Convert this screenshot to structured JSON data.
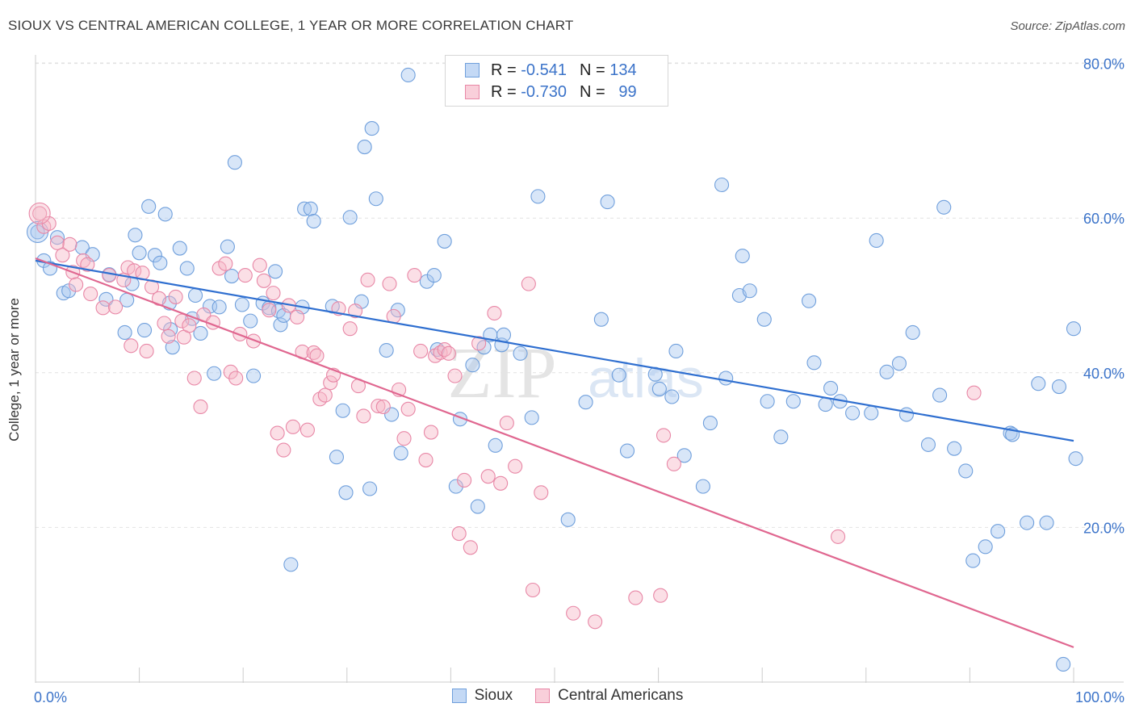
{
  "title": "SIOUX VS CENTRAL AMERICAN COLLEGE, 1 YEAR OR MORE CORRELATION CHART",
  "source": "Source: ZipAtlas.com",
  "watermark": {
    "zip": "ZIP",
    "atlas": "atlas"
  },
  "legend_stats": {
    "r_label": "R =",
    "n_label": "N =",
    "series": [
      {
        "r": "-0.541",
        "n": "134",
        "color": "#a9c7ef",
        "border": "#6f9fdc"
      },
      {
        "r": "-0.730",
        "n": "99",
        "color": "#f6b8c8",
        "border": "#e887a6"
      }
    ]
  },
  "chart_data": {
    "type": "scatter",
    "xlabel": "",
    "ylabel": "College, 1 year or more",
    "xlim": [
      0,
      100
    ],
    "ylim": [
      0,
      83
    ],
    "x_tick_labels": [
      "0.0%",
      "100.0%"
    ],
    "y_ticks": [
      20,
      40,
      60,
      80
    ],
    "y_tick_labels": [
      "20.0%",
      "40.0%",
      "60.0%",
      "80.0%"
    ],
    "grid": "horizontal dashed",
    "legend_position": "bottom",
    "series": [
      {
        "name": "Sioux",
        "color": "#a9c7ef",
        "edge": "#6f9fdc",
        "trend_color": "#2f6fd0",
        "trend": {
          "x": [
            0,
            100
          ],
          "y": [
            54.5,
            31.2
          ]
        },
        "points": [
          [
            0.2,
            58.2
          ],
          [
            0.8,
            54.5
          ],
          [
            1.4,
            53.5
          ],
          [
            2.1,
            57.5
          ],
          [
            2.7,
            50.3
          ],
          [
            3.2,
            50.6
          ],
          [
            4.5,
            56.2
          ],
          [
            5.5,
            55.3
          ],
          [
            6.8,
            49.5
          ],
          [
            7.1,
            52.7
          ],
          [
            8.6,
            45.2
          ],
          [
            8.8,
            49.4
          ],
          [
            9.3,
            51.5
          ],
          [
            9.6,
            57.8
          ],
          [
            10.0,
            55.5
          ],
          [
            10.5,
            45.5
          ],
          [
            10.9,
            61.5
          ],
          [
            11.5,
            55.2
          ],
          [
            12.0,
            54.2
          ],
          [
            12.5,
            60.5
          ],
          [
            12.9,
            49.0
          ],
          [
            13.0,
            45.6
          ],
          [
            13.2,
            43.3
          ],
          [
            13.9,
            56.1
          ],
          [
            14.6,
            53.5
          ],
          [
            15.1,
            47.0
          ],
          [
            15.4,
            50.0
          ],
          [
            15.9,
            45.1
          ],
          [
            16.8,
            48.6
          ],
          [
            17.2,
            39.9
          ],
          [
            17.7,
            48.5
          ],
          [
            18.5,
            56.3
          ],
          [
            18.9,
            52.5
          ],
          [
            19.2,
            67.2
          ],
          [
            19.9,
            48.8
          ],
          [
            20.7,
            46.7
          ],
          [
            21.0,
            39.6
          ],
          [
            21.9,
            49.0
          ],
          [
            22.5,
            48.4
          ],
          [
            23.1,
            53.1
          ],
          [
            23.4,
            48.0
          ],
          [
            23.6,
            46.2
          ],
          [
            23.9,
            47.4
          ],
          [
            24.6,
            15.2
          ],
          [
            25.7,
            48.5
          ],
          [
            25.9,
            61.2
          ],
          [
            26.5,
            61.2
          ],
          [
            26.8,
            59.6
          ],
          [
            28.6,
            48.6
          ],
          [
            29.0,
            29.1
          ],
          [
            29.6,
            35.1
          ],
          [
            29.9,
            24.5
          ],
          [
            30.3,
            60.1
          ],
          [
            31.4,
            49.2
          ],
          [
            31.7,
            69.2
          ],
          [
            32.2,
            25.0
          ],
          [
            32.4,
            71.6
          ],
          [
            32.8,
            62.5
          ],
          [
            33.8,
            42.9
          ],
          [
            34.3,
            34.6
          ],
          [
            34.9,
            48.1
          ],
          [
            35.2,
            29.6
          ],
          [
            35.9,
            78.5
          ],
          [
            37.7,
            51.8
          ],
          [
            38.4,
            52.6
          ],
          [
            38.7,
            43.0
          ],
          [
            39.4,
            57.0
          ],
          [
            40.5,
            25.3
          ],
          [
            40.9,
            34.0
          ],
          [
            42.1,
            41.0
          ],
          [
            42.6,
            22.7
          ],
          [
            43.2,
            43.3
          ],
          [
            43.8,
            44.9
          ],
          [
            44.3,
            30.6
          ],
          [
            44.9,
            43.6
          ],
          [
            45.1,
            44.9
          ],
          [
            46.7,
            42.5
          ],
          [
            47.8,
            34.2
          ],
          [
            48.4,
            62.8
          ],
          [
            51.3,
            21.0
          ],
          [
            53.0,
            36.2
          ],
          [
            54.5,
            46.9
          ],
          [
            55.1,
            62.1
          ],
          [
            56.2,
            39.7
          ],
          [
            57.0,
            29.9
          ],
          [
            59.7,
            39.8
          ],
          [
            60.1,
            37.9
          ],
          [
            61.3,
            36.9
          ],
          [
            61.7,
            42.8
          ],
          [
            62.5,
            29.3
          ],
          [
            64.3,
            25.3
          ],
          [
            65.0,
            33.5
          ],
          [
            66.1,
            64.3
          ],
          [
            66.5,
            39.3
          ],
          [
            67.8,
            50.0
          ],
          [
            68.1,
            55.1
          ],
          [
            68.8,
            50.6
          ],
          [
            70.2,
            46.9
          ],
          [
            70.5,
            36.3
          ],
          [
            71.8,
            31.7
          ],
          [
            73.0,
            36.3
          ],
          [
            74.5,
            49.3
          ],
          [
            75.0,
            41.3
          ],
          [
            76.1,
            35.9
          ],
          [
            76.6,
            38.0
          ],
          [
            77.5,
            36.3
          ],
          [
            78.7,
            34.8
          ],
          [
            80.5,
            34.8
          ],
          [
            81.0,
            57.1
          ],
          [
            82.0,
            40.1
          ],
          [
            83.2,
            41.2
          ],
          [
            83.9,
            34.6
          ],
          [
            84.5,
            45.2
          ],
          [
            86.0,
            30.7
          ],
          [
            87.1,
            37.1
          ],
          [
            87.5,
            61.4
          ],
          [
            88.5,
            30.2
          ],
          [
            89.6,
            27.3
          ],
          [
            90.3,
            15.7
          ],
          [
            91.5,
            17.5
          ],
          [
            92.7,
            19.5
          ],
          [
            93.9,
            32.2
          ],
          [
            94.1,
            32.0
          ],
          [
            95.5,
            20.6
          ],
          [
            96.6,
            38.6
          ],
          [
            97.4,
            20.6
          ],
          [
            98.6,
            38.2
          ],
          [
            99.0,
            2.3
          ],
          [
            100.0,
            45.7
          ],
          [
            100.2,
            28.9
          ]
        ]
      },
      {
        "name": "Central Americans",
        "color": "#f6b8c8",
        "edge": "#e887a6",
        "trend_color": "#e06790",
        "trend": {
          "x": [
            0,
            100
          ],
          "y": [
            54.8,
            4.5
          ]
        },
        "points": [
          [
            0.4,
            60.6
          ],
          [
            0.8,
            58.9
          ],
          [
            1.3,
            59.3
          ],
          [
            2.1,
            56.8
          ],
          [
            2.6,
            55.2
          ],
          [
            3.3,
            56.6
          ],
          [
            3.6,
            53.0
          ],
          [
            3.9,
            51.4
          ],
          [
            4.6,
            54.5
          ],
          [
            5.0,
            54.0
          ],
          [
            5.3,
            50.2
          ],
          [
            6.5,
            48.4
          ],
          [
            7.1,
            52.6
          ],
          [
            7.7,
            48.5
          ],
          [
            8.5,
            52.0
          ],
          [
            8.9,
            53.6
          ],
          [
            9.2,
            43.5
          ],
          [
            9.5,
            53.2
          ],
          [
            10.3,
            52.9
          ],
          [
            10.7,
            42.8
          ],
          [
            11.2,
            51.1
          ],
          [
            11.9,
            49.6
          ],
          [
            12.4,
            46.4
          ],
          [
            12.8,
            44.7
          ],
          [
            13.5,
            49.8
          ],
          [
            14.1,
            46.7
          ],
          [
            14.3,
            44.6
          ],
          [
            14.8,
            46.1
          ],
          [
            15.3,
            39.3
          ],
          [
            15.9,
            35.6
          ],
          [
            16.2,
            47.5
          ],
          [
            17.1,
            46.5
          ],
          [
            17.7,
            53.5
          ],
          [
            18.3,
            54.1
          ],
          [
            18.8,
            40.1
          ],
          [
            19.3,
            39.3
          ],
          [
            19.7,
            45.0
          ],
          [
            20.2,
            52.6
          ],
          [
            21.0,
            44.1
          ],
          [
            21.6,
            53.9
          ],
          [
            22.0,
            51.9
          ],
          [
            22.5,
            48.1
          ],
          [
            22.9,
            50.3
          ],
          [
            23.3,
            32.2
          ],
          [
            23.9,
            30.0
          ],
          [
            24.4,
            48.7
          ],
          [
            24.8,
            33.0
          ],
          [
            25.2,
            47.2
          ],
          [
            25.7,
            42.7
          ],
          [
            26.2,
            32.6
          ],
          [
            26.8,
            42.6
          ],
          [
            27.1,
            42.2
          ],
          [
            27.4,
            36.6
          ],
          [
            27.9,
            37.1
          ],
          [
            28.4,
            38.7
          ],
          [
            28.7,
            39.7
          ],
          [
            29.2,
            48.3
          ],
          [
            30.3,
            45.7
          ],
          [
            30.8,
            48.0
          ],
          [
            31.1,
            38.3
          ],
          [
            31.6,
            34.4
          ],
          [
            32.0,
            52.0
          ],
          [
            33.0,
            35.7
          ],
          [
            33.5,
            35.6
          ],
          [
            34.1,
            51.5
          ],
          [
            34.5,
            47.3
          ],
          [
            35.0,
            37.8
          ],
          [
            35.5,
            31.5
          ],
          [
            35.9,
            35.3
          ],
          [
            36.5,
            52.6
          ],
          [
            37.1,
            42.8
          ],
          [
            37.6,
            28.7
          ],
          [
            38.1,
            32.3
          ],
          [
            38.5,
            42.2
          ],
          [
            39.0,
            42.6
          ],
          [
            39.4,
            43.0
          ],
          [
            39.8,
            42.5
          ],
          [
            40.4,
            39.6
          ],
          [
            40.8,
            19.2
          ],
          [
            41.3,
            26.1
          ],
          [
            41.9,
            17.4
          ],
          [
            42.7,
            43.8
          ],
          [
            43.6,
            26.6
          ],
          [
            44.2,
            47.7
          ],
          [
            44.8,
            25.7
          ],
          [
            45.4,
            33.5
          ],
          [
            46.2,
            27.9
          ],
          [
            47.5,
            51.5
          ],
          [
            47.9,
            11.9
          ],
          [
            48.7,
            24.5
          ],
          [
            51.8,
            8.9
          ],
          [
            53.9,
            7.8
          ],
          [
            57.8,
            10.9
          ],
          [
            60.2,
            11.2
          ],
          [
            60.5,
            31.9
          ],
          [
            61.5,
            28.2
          ],
          [
            77.3,
            18.8
          ],
          [
            90.4,
            37.4
          ]
        ]
      }
    ]
  }
}
